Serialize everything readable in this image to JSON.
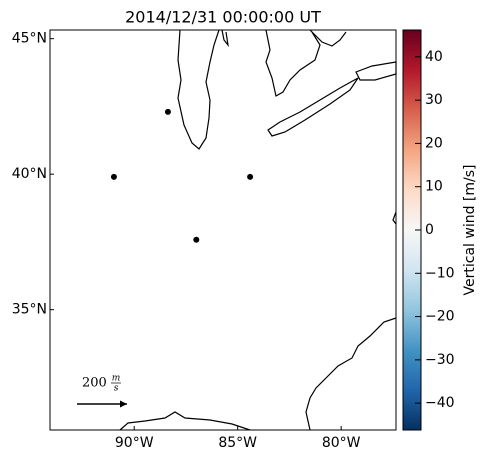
{
  "chart_data": {
    "type": "scatter",
    "title": "2014/12/31 00:00:00 UT",
    "x": [
      -88.37,
      -90.98,
      -84.4,
      -87.0
    ],
    "y": [
      42.3,
      39.9,
      39.9,
      37.58
    ],
    "color": "#000000",
    "xlim": [
      -94.07,
      -77.35
    ],
    "ylim": [
      30.56,
      45.32
    ],
    "xticks": [
      {
        "value": -90,
        "label": "90°W"
      },
      {
        "value": -85,
        "label": "85°W"
      },
      {
        "value": -80,
        "label": "80°W"
      }
    ],
    "yticks": [
      {
        "value": 45,
        "label": "45°N"
      },
      {
        "value": 40,
        "label": "40°N"
      },
      {
        "value": 35,
        "label": "35°N"
      }
    ],
    "quiver_key": {
      "value": 200,
      "unit_num": "m",
      "unit_den": "s"
    },
    "colorbar": {
      "label": "Vertical wind [m/s]",
      "lim": [
        -46.2,
        46.2
      ],
      "ticks": [
        {
          "value": -40,
          "label": "−40"
        },
        {
          "value": -30,
          "label": "−30"
        },
        {
          "value": -20,
          "label": "−20"
        },
        {
          "value": -10,
          "label": "−10"
        },
        0,
        10,
        20,
        30,
        40
      ],
      "colors": [
        "#053061",
        "#2166ac",
        "#4393c3",
        "#92c5de",
        "#d1e5f0",
        "#f7f7f7",
        "#fddbc7",
        "#f4a582",
        "#d6604d",
        "#b2182b",
        "#67001f"
      ]
    }
  }
}
